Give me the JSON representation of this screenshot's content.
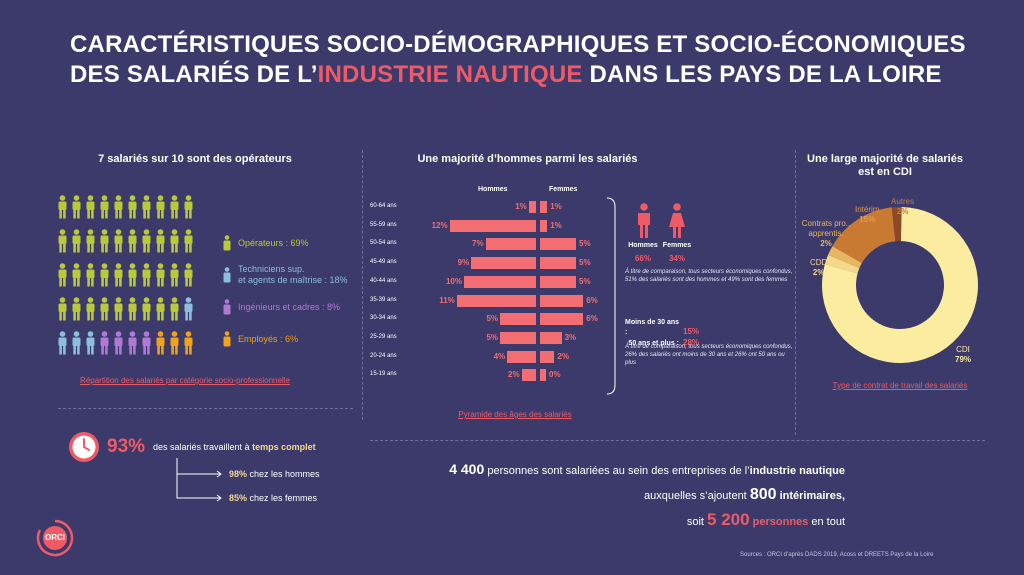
{
  "title": {
    "line1": "CARACTÉRISTIQUES SOCIO-DÉMOGRAPHIQUES ET SOCIO-ÉCONOMIQUES",
    "line2_prefix": "DES SALARIÉS DE L’",
    "line2_highlight": "INDUSTRIE NAUTIQUE",
    "line2_suffix": " DANS LES PAYS DE LA LOIRE"
  },
  "categories": {
    "title": "7 salariés sur 10 sont des opérateurs",
    "caption": "Répartition des salariés par catégorie socio-professionnelle",
    "items": [
      {
        "label": "Opérateurs : 69%",
        "color": "#b9c93a"
      },
      {
        "label1": "Techniciens sup.",
        "label2": "et agents de maîtrise : 18%",
        "color": "#8bbfdc"
      },
      {
        "label": "Ingénieurs et cadres : 8%",
        "color": "#b079d6"
      },
      {
        "label": "Employés : 6%",
        "color": "#f0a21b"
      }
    ]
  },
  "pyramid": {
    "title": "Une majorité d’hommes parmi les salariés",
    "men_header": "Hommes",
    "women_header": "Femmes",
    "caption": "Pyramide des âges des salariés",
    "chart_data": {
      "type": "bar",
      "categories": [
        "60-64 ans",
        "55-59 ans",
        "50-54 ans",
        "45-49 ans",
        "40-44 ans",
        "35-39 ans",
        "30-34 ans",
        "25-29 ans",
        "20-24 ans",
        "15-19 ans"
      ],
      "series": [
        {
          "name": "Hommes",
          "values": [
            1,
            12,
            7,
            9,
            10,
            11,
            5,
            5,
            4,
            2
          ]
        },
        {
          "name": "Femmes",
          "values": [
            1,
            1,
            5,
            5,
            5,
            6,
            6,
            3,
            2,
            0
          ]
        }
      ]
    },
    "side": {
      "men_label": "Hommes",
      "women_label": "Femmes",
      "men_pct": "66%",
      "women_pct": "34%",
      "note1": "À titre de comparaison, tous secteurs économiques confondus, 51% des salariés sont des hommes et 49% sont des femmes",
      "under30_label": "Moins de 30 ans :",
      "under30_val": "15%",
      "over50_label": "50 ans et plus :",
      "over50_val": "28%",
      "note2": "À titre de comparaison, tous secteurs économiques confondus, 26% des salariés ont moins de 30 ans et 26% ont 50 ans ou plus"
    }
  },
  "contracts": {
    "title1": "Une large majorité de salariés",
    "title2": "est en CDI",
    "caption": "Type de contrat de travail des salariés",
    "chart_data": {
      "type": "pie",
      "slices": [
        {
          "name": "CDI",
          "value": 79,
          "color": "#fbeca0"
        },
        {
          "name": "CDD",
          "value": 2,
          "color": "#f5d88a"
        },
        {
          "name": "Contrats pro., apprentis.",
          "value": 2,
          "color": "#e8b561"
        },
        {
          "name": "Intérim",
          "value": 15,
          "color": "#c97a32"
        },
        {
          "name": "Autres",
          "value": 2,
          "color": "#8d4a22"
        }
      ]
    },
    "labels": {
      "cdi": "CDI",
      "cdi_pct": "79%",
      "cdd": "CDD",
      "cdd_pct": "2%",
      "pro1": "Contrats pro.,",
      "pro2": "apprentis.",
      "pro_pct": "2%",
      "interim": "Intérim",
      "interim_pct": "15%",
      "autres": "Autres",
      "autres_pct": "2%"
    }
  },
  "fulltime": {
    "pct": "93%",
    "text_prefix": "des salariés travaillent à",
    "text_bold": "temps complet",
    "men_pct": "98%",
    "men_text": "chez les hommes",
    "women_pct": "85%",
    "women_text": "chez les femmes"
  },
  "totals": {
    "n1": "4 400",
    "l1_mid": "personnes sont salariées au sein des entreprises de l’",
    "l1_bold": "industrie nautique",
    "l2_pre": "auxquelles s’ajoutent",
    "n2": "800",
    "l2_bold": "intérimaires,",
    "l3_pre": "soit",
    "n3": "5 200",
    "l3_bold": "personnes",
    "l3_post": "en tout"
  },
  "logo": "ORCI",
  "source": "Sources : ORCI d’après DADS 2019, Acoss et DREETS Pays de la Loire"
}
